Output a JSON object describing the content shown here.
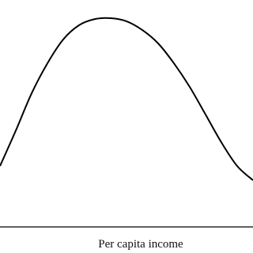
{
  "chart_data": {
    "type": "line",
    "x_label": "Per capita income",
    "x": [
      0,
      6.25,
      12.5,
      18.75,
      25,
      31.25,
      37.5,
      43.75,
      50,
      56.25,
      62.5,
      68.75,
      75,
      81.25,
      87.5,
      93.75,
      100
    ],
    "series": [
      {
        "color": "#000000",
        "values": [
          27.8,
          44.0,
          61.0,
          74.7,
          85.6,
          92.1,
          94.9,
          95.3,
          93.9,
          89.9,
          83.8,
          74.7,
          63.9,
          51.3,
          38.6,
          27.8,
          21.3
        ]
      }
    ],
    "xlim": [
      0,
      100
    ],
    "ylim": [
      0,
      100
    ]
  }
}
